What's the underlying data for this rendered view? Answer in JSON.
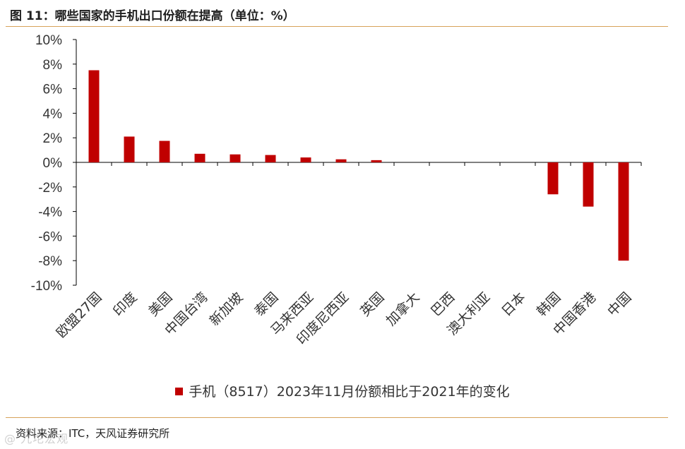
{
  "header": {
    "title": "图 11：哪些国家的手机出口份额在提高（单位：%）"
  },
  "footer": {
    "source": "资料来源：ITC，天风证券研究所",
    "watermark": "@ 九坨宏观"
  },
  "colors": {
    "bar": "#c00000",
    "rule": "#d7a25a",
    "axis": "#000000"
  },
  "chart_data": {
    "type": "bar",
    "title": "",
    "xlabel": "",
    "ylabel": "",
    "ylim": [
      -10,
      10
    ],
    "yticks": [
      -10,
      -8,
      -6,
      -4,
      -2,
      0,
      2,
      4,
      6,
      8,
      10
    ],
    "ytick_labels": [
      "-10%",
      "-8%",
      "-6%",
      "-4%",
      "-2%",
      "0%",
      "2%",
      "4%",
      "6%",
      "8%",
      "10%"
    ],
    "categories": [
      "欧盟27国",
      "印度",
      "美国",
      "中国台湾",
      "新加坡",
      "泰国",
      "马来西亚",
      "印度尼西亚",
      "英国",
      "加拿大",
      "巴西",
      "澳大利亚",
      "日本",
      "韩国",
      "中国香港",
      "中国"
    ],
    "series": [
      {
        "name": "手机（8517）2023年11月份额相比于2021年的变化",
        "values": [
          7.5,
          2.1,
          1.75,
          0.7,
          0.65,
          0.6,
          0.4,
          0.25,
          0.18,
          0.0,
          0.0,
          0.0,
          0.0,
          -2.6,
          -3.6,
          -8.0
        ]
      }
    ],
    "legend_position": "bottom"
  }
}
